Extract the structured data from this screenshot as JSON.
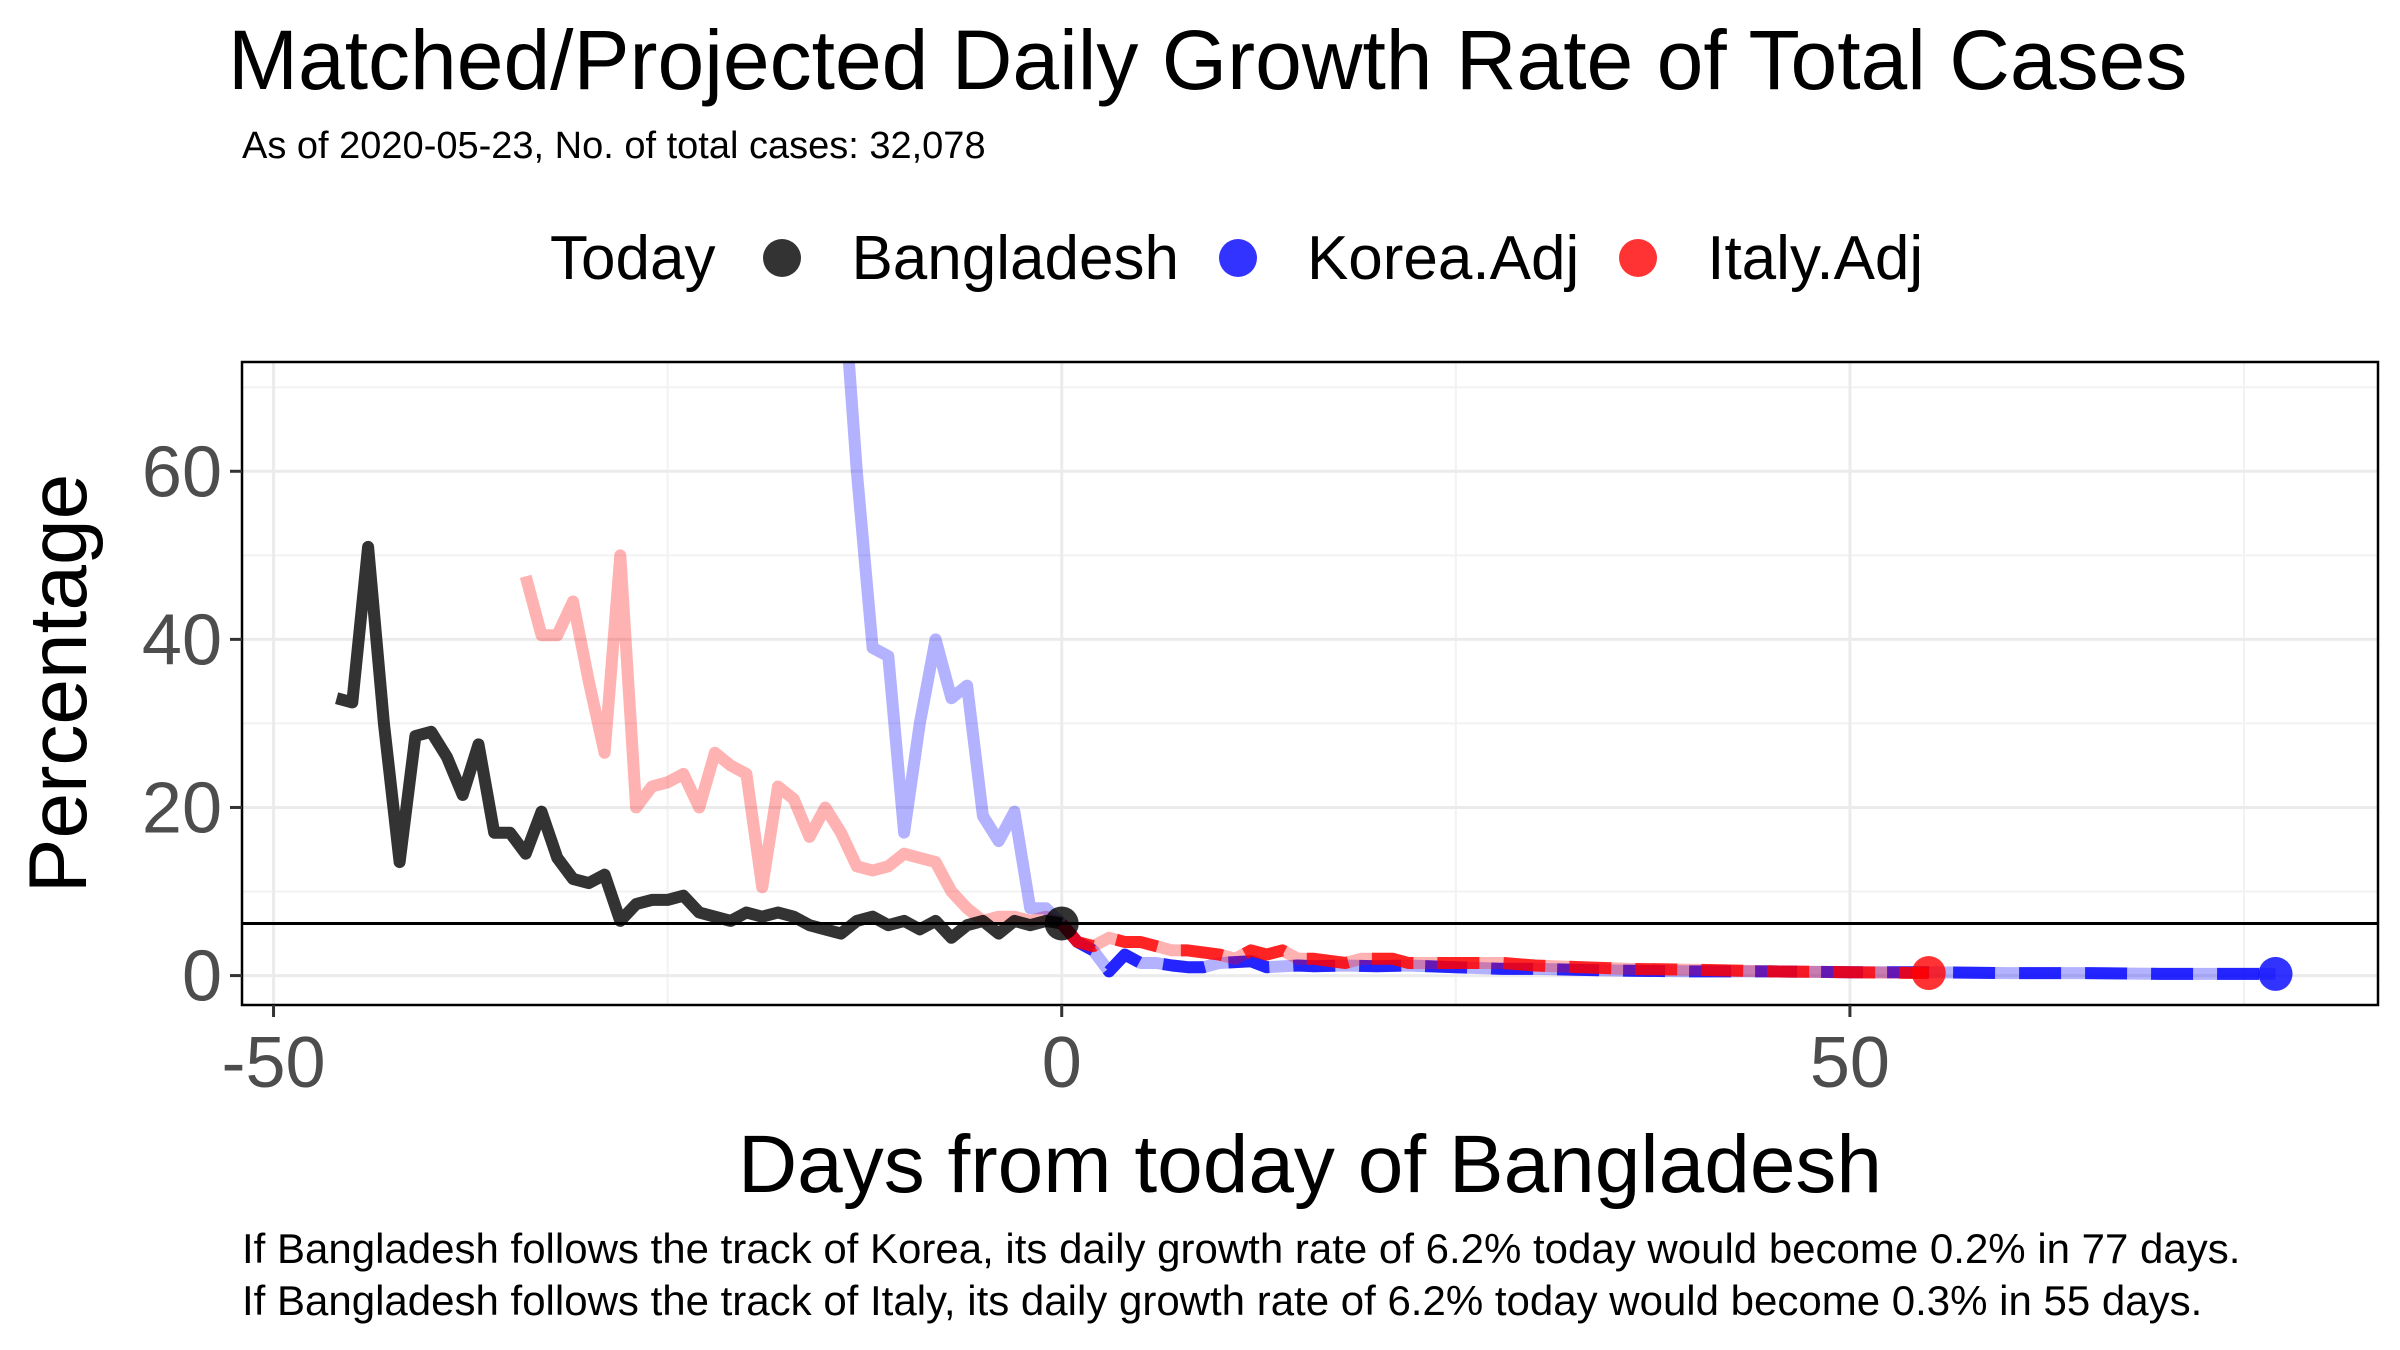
{
  "chart_data": {
    "type": "line",
    "title": "Matched/Projected Daily Growth Rate of Total Cases",
    "subtitle": "As of 2020-05-23, No. of total cases: 32,078",
    "xlabel": "Days from today of Bangladesh",
    "ylabel": "Percentage",
    "xlim": [
      -52,
      83.5
    ],
    "ylim": [
      -3.5,
      73
    ],
    "xticks": [
      -50,
      0,
      50
    ],
    "yticks": [
      0,
      20,
      40,
      60
    ],
    "grid": true,
    "legend": {
      "title": "Today",
      "placement": "top",
      "entries": [
        {
          "name": "Bangladesh",
          "color": "#000000"
        },
        {
          "name": "Korea.Adj",
          "color": "#0000FF"
        },
        {
          "name": "Italy.Adj",
          "color": "#FF0000"
        }
      ]
    },
    "hline": 6.2,
    "series": [
      {
        "name": "Bangladesh",
        "color": "#000000",
        "style": "solid",
        "today_point": [
          0,
          6.2
        ],
        "points": [
          [
            -46,
            33
          ],
          [
            -45,
            32.5
          ],
          [
            -44,
            51
          ],
          [
            -43,
            30
          ],
          [
            -42,
            13.5
          ],
          [
            -41,
            28.5
          ],
          [
            -40,
            29
          ],
          [
            -39,
            26
          ],
          [
            -38,
            21.5
          ],
          [
            -37,
            27.5
          ],
          [
            -36,
            17
          ],
          [
            -35,
            17
          ],
          [
            -34,
            14.5
          ],
          [
            -33,
            19.5
          ],
          [
            -32,
            14
          ],
          [
            -31,
            11.5
          ],
          [
            -30,
            11
          ],
          [
            -29,
            12
          ],
          [
            -28,
            6.5
          ],
          [
            -27,
            8.5
          ],
          [
            -26,
            9
          ],
          [
            -25,
            9
          ],
          [
            -24,
            9.5
          ],
          [
            -23,
            7.5
          ],
          [
            -22,
            7
          ],
          [
            -21,
            6.5
          ],
          [
            -20,
            7.5
          ],
          [
            -19,
            7
          ],
          [
            -18,
            7.5
          ],
          [
            -17,
            7
          ],
          [
            -16,
            6
          ],
          [
            -15,
            5.5
          ],
          [
            -14,
            5
          ],
          [
            -13,
            6.5
          ],
          [
            -12,
            7
          ],
          [
            -11,
            6
          ],
          [
            -10,
            6.5
          ],
          [
            -9,
            5.5
          ],
          [
            -8,
            6.5
          ],
          [
            -7,
            4.5
          ],
          [
            -6,
            6
          ],
          [
            -5,
            6.5
          ],
          [
            -4,
            5
          ],
          [
            -3,
            6.5
          ],
          [
            -2,
            6
          ],
          [
            -1,
            6.5
          ],
          [
            0,
            6.2
          ]
        ]
      },
      {
        "name": "Korea.Adj",
        "color": "#0000FF",
        "style": "solid-projected-dashed",
        "end_point": [
          77,
          0.2
        ],
        "history": [
          [
            -13.5,
            73
          ],
          [
            -13,
            60
          ],
          [
            -12,
            39
          ],
          [
            -11,
            38
          ],
          [
            -10,
            17
          ],
          [
            -9,
            30
          ],
          [
            -8,
            40
          ],
          [
            -7,
            33
          ],
          [
            -6,
            34.5
          ],
          [
            -5,
            19
          ],
          [
            -4,
            16
          ],
          [
            -3,
            19.5
          ],
          [
            -2,
            8
          ],
          [
            -1,
            8
          ],
          [
            0,
            6.2
          ]
        ],
        "projection": [
          [
            0,
            6.2
          ],
          [
            1,
            4
          ],
          [
            2,
            3
          ],
          [
            3,
            0.5
          ],
          [
            4,
            2.5
          ],
          [
            5,
            1.5
          ],
          [
            6,
            1.5
          ],
          [
            7,
            1.2
          ],
          [
            8,
            1
          ],
          [
            9,
            1
          ],
          [
            10,
            1.5
          ],
          [
            12,
            1.7
          ],
          [
            13,
            1
          ],
          [
            15,
            1.2
          ],
          [
            16,
            1.1
          ],
          [
            18,
            1.2
          ],
          [
            20,
            1.1
          ],
          [
            22,
            1.2
          ],
          [
            25,
            1
          ],
          [
            28,
            0.8
          ],
          [
            30,
            0.8
          ],
          [
            35,
            0.6
          ],
          [
            40,
            0.5
          ],
          [
            45,
            0.5
          ],
          [
            50,
            0.4
          ],
          [
            55,
            0.4
          ],
          [
            60,
            0.3
          ],
          [
            65,
            0.3
          ],
          [
            70,
            0.2
          ],
          [
            77,
            0.2
          ]
        ]
      },
      {
        "name": "Italy.Adj",
        "color": "#FF0000",
        "style": "solid-projected-dashed",
        "end_point": [
          55,
          0.3
        ],
        "history": [
          [
            -34,
            47.5
          ],
          [
            -33,
            40.5
          ],
          [
            -32,
            40.5
          ],
          [
            -31,
            44.5
          ],
          [
            -30,
            35
          ],
          [
            -29,
            26.5
          ],
          [
            -28,
            50
          ],
          [
            -27,
            20
          ],
          [
            -26,
            22.5
          ],
          [
            -25,
            23
          ],
          [
            -24,
            24
          ],
          [
            -23,
            20
          ],
          [
            -22,
            26.5
          ],
          [
            -21,
            25
          ],
          [
            -20,
            24
          ],
          [
            -19,
            10.5
          ],
          [
            -18,
            22.5
          ],
          [
            -17,
            21
          ],
          [
            -16,
            16.5
          ],
          [
            -15,
            20
          ],
          [
            -14,
            17
          ],
          [
            -13,
            13
          ],
          [
            -12,
            12.5
          ],
          [
            -11,
            13
          ],
          [
            -10,
            14.5
          ],
          [
            -9,
            14
          ],
          [
            -8,
            13.5
          ],
          [
            -7,
            10
          ],
          [
            -6,
            8
          ],
          [
            -5,
            6.5
          ],
          [
            -4,
            7
          ],
          [
            -3,
            7
          ],
          [
            -2,
            6.5
          ],
          [
            -1,
            7
          ],
          [
            0,
            6.2
          ]
        ],
        "projection": [
          [
            0,
            6.2
          ],
          [
            1,
            4
          ],
          [
            2,
            3.5
          ],
          [
            3,
            4.5
          ],
          [
            4,
            4
          ],
          [
            5,
            4
          ],
          [
            6,
            3.5
          ],
          [
            7,
            3
          ],
          [
            8,
            3
          ],
          [
            10,
            2.5
          ],
          [
            11,
            2
          ],
          [
            12,
            3
          ],
          [
            13,
            2.5
          ],
          [
            14,
            3
          ],
          [
            15,
            2
          ],
          [
            16,
            2
          ],
          [
            18,
            1.5
          ],
          [
            19,
            2
          ],
          [
            21,
            2
          ],
          [
            22,
            1.5
          ],
          [
            25,
            1.5
          ],
          [
            28,
            1.5
          ],
          [
            30,
            1.2
          ],
          [
            33,
            1
          ],
          [
            36,
            0.8
          ],
          [
            40,
            0.7
          ],
          [
            45,
            0.5
          ],
          [
            50,
            0.4
          ],
          [
            55,
            0.3
          ]
        ]
      }
    ]
  },
  "footnotes": [
    "If Bangladesh follows the track of Korea, its daily growth rate of 6.2% today would become 0.2% in 77 days.",
    "If Bangladesh follows the track of Italy, its daily growth rate of 6.2% today would become 0.3% in 55 days."
  ]
}
